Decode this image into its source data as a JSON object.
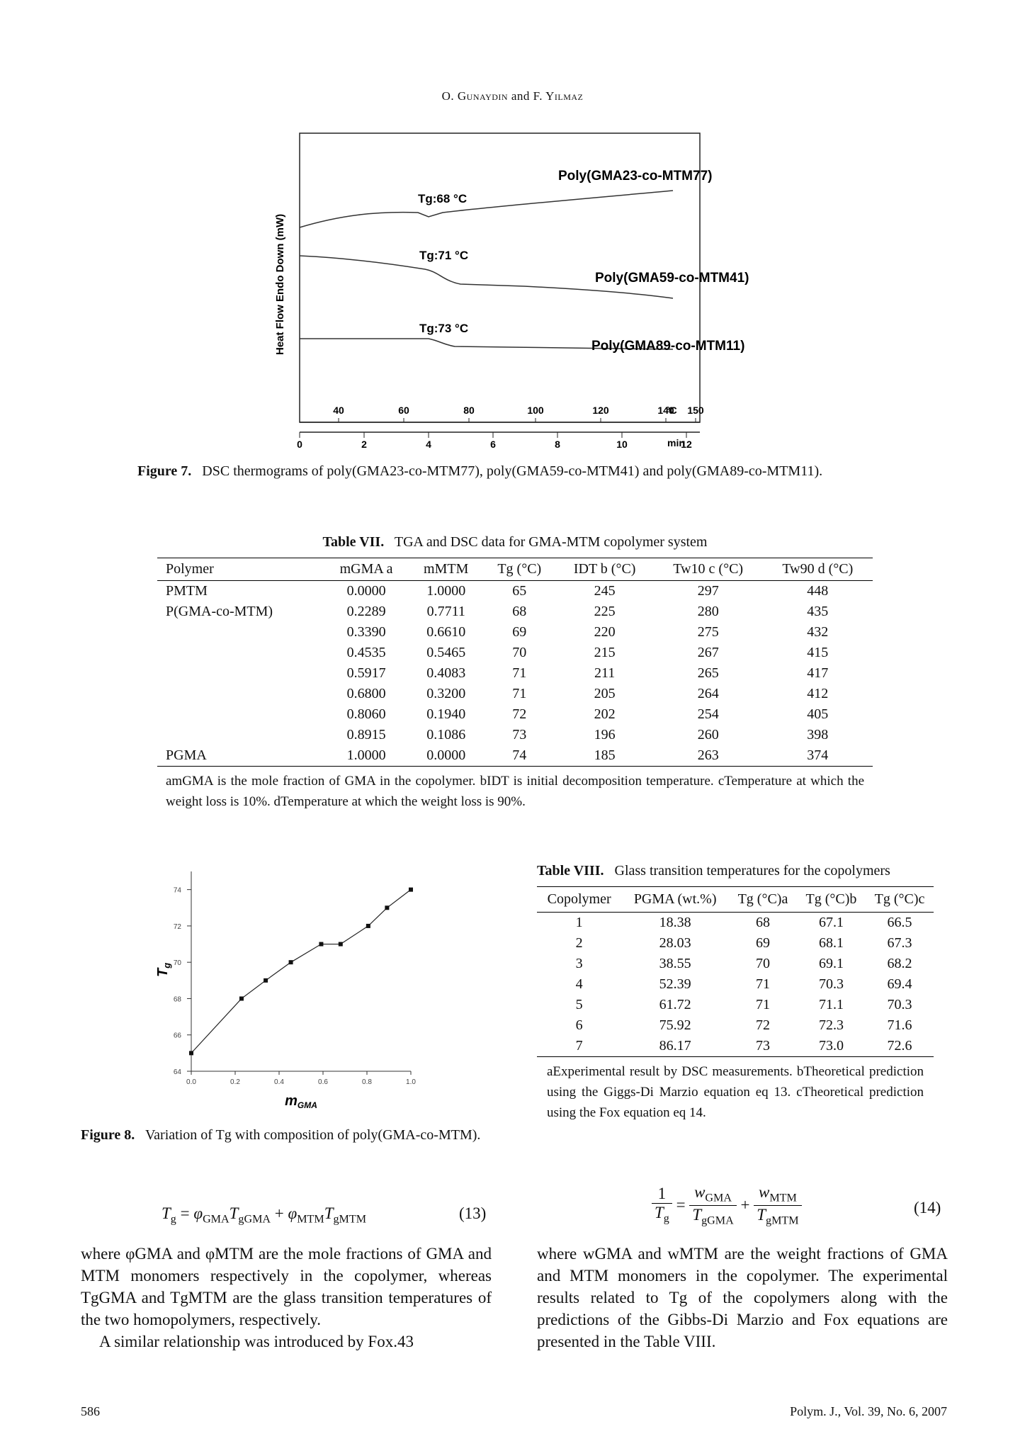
{
  "header": {
    "author1": "O. Gunaydin",
    "and": "and",
    "author2": "F. Yilmaz"
  },
  "figure7": {
    "ylabel": "Heat Flow Endo Down (mW)",
    "temp_ticks": [
      "40",
      "60",
      "80",
      "100",
      "120",
      "140",
      "150"
    ],
    "temp_unit": "°C",
    "time_ticks": [
      "0",
      "2",
      "4",
      "6",
      "8",
      "10",
      "12"
    ],
    "time_unit": "min",
    "curves": [
      {
        "label": "Poly(GMA23-co-MTM77)",
        "tg": "Tg:68 °C"
      },
      {
        "label": "Poly(GMA59-co-MTM41)",
        "tg": "Tg:71 °C"
      },
      {
        "label": "Poly(GMA89-co-MTM11)",
        "tg": "Tg:73 °C"
      }
    ],
    "caption_label": "Figure 7.",
    "caption_text": "DSC thermograms of poly(GMA23-co-MTM77), poly(GMA59-co-MTM41) and poly(GMA89-co-MTM11)."
  },
  "table7": {
    "label": "Table VII.",
    "title": "TGA and DSC data for GMA-MTM copolymer system",
    "headers": [
      "Polymer",
      "mGMA a",
      "mMTM",
      "Tg (°C)",
      "IDT b (°C)",
      "Tw10 c (°C)",
      "Tw90 d (°C)"
    ],
    "rows": [
      [
        "PMTM",
        "0.0000",
        "1.0000",
        "65",
        "245",
        "297",
        "448"
      ],
      [
        "P(GMA-co-MTM)",
        "0.2289",
        "0.7711",
        "68",
        "225",
        "280",
        "435"
      ],
      [
        "",
        "0.3390",
        "0.6610",
        "69",
        "220",
        "275",
        "432"
      ],
      [
        "",
        "0.4535",
        "0.5465",
        "70",
        "215",
        "267",
        "415"
      ],
      [
        "",
        "0.5917",
        "0.4083",
        "71",
        "211",
        "265",
        "417"
      ],
      [
        "",
        "0.6800",
        "0.3200",
        "71",
        "205",
        "264",
        "412"
      ],
      [
        "",
        "0.8060",
        "0.1940",
        "72",
        "202",
        "254",
        "405"
      ],
      [
        "",
        "0.8915",
        "0.1086",
        "73",
        "196",
        "260",
        "398"
      ],
      [
        "PGMA",
        "1.0000",
        "0.0000",
        "74",
        "185",
        "263",
        "374"
      ]
    ],
    "footnote": "amGMA is the mole fraction of GMA in the copolymer. bIDT is initial decomposition temperature. cTemperature at which the weight loss is 10%. dTemperature at which the weight loss is 90%."
  },
  "chart_data": {
    "type": "line",
    "xlabel": "mGMA",
    "ylabel": "Tg",
    "xlim": [
      0.0,
      1.0
    ],
    "ylim": [
      64,
      75
    ],
    "xticks": [
      "0.0",
      "0.2",
      "0.4",
      "0.6",
      "0.8",
      "1.0"
    ],
    "yticks": [
      "64",
      "66",
      "68",
      "70",
      "72",
      "74"
    ],
    "x": [
      0.0,
      0.2289,
      0.339,
      0.4535,
      0.5917,
      0.68,
      0.806,
      0.8915,
      1.0
    ],
    "y": [
      65,
      68,
      69,
      70,
      71,
      71,
      72,
      73,
      74
    ],
    "grid": false
  },
  "figure8": {
    "caption_label": "Figure 8.",
    "caption_text": "Variation of Tg with composition of poly(GMA-co-MTM)."
  },
  "table8": {
    "label": "Table VIII.",
    "title": "Glass transition temperatures for the copolymers",
    "headers": [
      "Copolymer",
      "PGMA (wt.%)",
      "Tg (°C)a",
      "Tg (°C)b",
      "Tg (°C)c"
    ],
    "rows": [
      [
        "1",
        "18.38",
        "68",
        "67.1",
        "66.5"
      ],
      [
        "2",
        "28.03",
        "69",
        "68.1",
        "67.3"
      ],
      [
        "3",
        "38.55",
        "70",
        "69.1",
        "68.2"
      ],
      [
        "4",
        "52.39",
        "71",
        "70.3",
        "69.4"
      ],
      [
        "5",
        "61.72",
        "71",
        "71.1",
        "70.3"
      ],
      [
        "6",
        "75.92",
        "72",
        "72.3",
        "71.6"
      ],
      [
        "7",
        "86.17",
        "73",
        "73.0",
        "72.6"
      ]
    ],
    "footnote": "aExperimental result by DSC measurements. bTheoretical prediction using the Giggs-Di Marzio equation eq 13. cTheoretical prediction using the Fox equation eq 14."
  },
  "equations": {
    "eq13_number": "(13)",
    "eq14_number": "(14)"
  },
  "text": {
    "left_p1": "where φGMA and φMTM are the mole fractions of GMA and MTM monomers respectively in the copolymer, whereas TgGMA and TgMTM are the glass transition temperatures of the two homopolymers, respectively.",
    "left_p2": "A similar relationship was introduced by Fox.43",
    "right_p1": "where wGMA and wMTM are the weight fractions of GMA and MTM monomers in the copolymer. The experimental results related to Tg of the copolymers along with the predictions of the Gibbs-Di Marzio and Fox equations are presented in the Table VIII."
  },
  "footer": {
    "page": "586",
    "journal": "Polym. J., Vol. 39, No. 6, 2007"
  }
}
